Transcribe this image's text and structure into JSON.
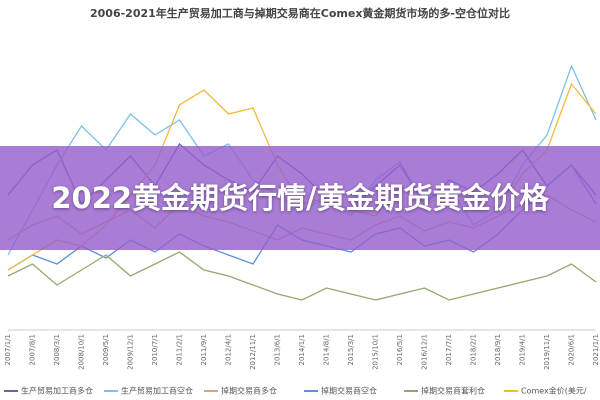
{
  "chart_data": {
    "type": "line",
    "title": "2006-2021年生产贸易加工商与掉期交易商在Comex黄金期货市场的多-空仓位对比",
    "categories": [
      "2007/1/1",
      "2007/8/1",
      "2008/3/1",
      "2008/10/1",
      "2009/5/1",
      "2009/12/1",
      "2010/7/1",
      "2011/2/1",
      "2011/9/1",
      "2012/4/1",
      "2012/11/1",
      "2013/6/1",
      "2014/1/1",
      "2014/8/1",
      "2015/3/1",
      "2015/10/1",
      "2016/5/1",
      "2016/12/1",
      "2017/7/1",
      "2018/2/1",
      "2018/9/1",
      "2019/4/1",
      "2019/11/1",
      "2020/6/1",
      "2021/1/1"
    ],
    "ylim": [
      0,
      100
    ],
    "series": [
      {
        "name": "生产贸易加工商多仓",
        "color": "#6a63b0",
        "values": [
          45,
          55,
          60,
          42,
          50,
          58,
          48,
          62,
          55,
          50,
          46,
          58,
          52,
          44,
          40,
          48,
          55,
          42,
          50,
          46,
          52,
          60,
          48,
          55,
          45
        ]
      },
      {
        "name": "生产贸易加工商空仓",
        "color": "#7cc0ec",
        "values": [
          25,
          40,
          55,
          68,
          60,
          72,
          65,
          70,
          58,
          62,
          50,
          45,
          40,
          44,
          38,
          50,
          56,
          42,
          48,
          35,
          40,
          55,
          65,
          88,
          70
        ]
      },
      {
        "name": "掉期交易商多仓",
        "color": "#e0a37a",
        "values": [
          30,
          35,
          38,
          32,
          36,
          40,
          34,
          42,
          38,
          36,
          33,
          30,
          34,
          32,
          30,
          35,
          38,
          33,
          36,
          34,
          38,
          42,
          45,
          40,
          36
        ]
      },
      {
        "name": "掉期交易商空仓",
        "color": "#5b8fd6",
        "values": [
          20,
          25,
          22,
          28,
          24,
          30,
          26,
          32,
          28,
          25,
          22,
          35,
          30,
          28,
          26,
          32,
          34,
          28,
          30,
          26,
          32,
          40,
          48,
          55,
          42
        ]
      },
      {
        "name": "掉期交易商套利仓",
        "color": "#8faa6c",
        "values": [
          18,
          22,
          15,
          20,
          25,
          18,
          22,
          26,
          20,
          18,
          15,
          12,
          10,
          14,
          12,
          10,
          12,
          14,
          10,
          12,
          14,
          16,
          18,
          22,
          16
        ]
      },
      {
        "name": "Comex金价(美元/",
        "color": "#f2b93b",
        "values": [
          20,
          25,
          30,
          28,
          35,
          45,
          55,
          75,
          80,
          72,
          74,
          55,
          42,
          44,
          40,
          38,
          48,
          42,
          45,
          44,
          40,
          52,
          60,
          82,
          72
        ]
      }
    ]
  },
  "banner": {
    "title": "2022黄金期货行情/黄金期货黄金价格"
  }
}
